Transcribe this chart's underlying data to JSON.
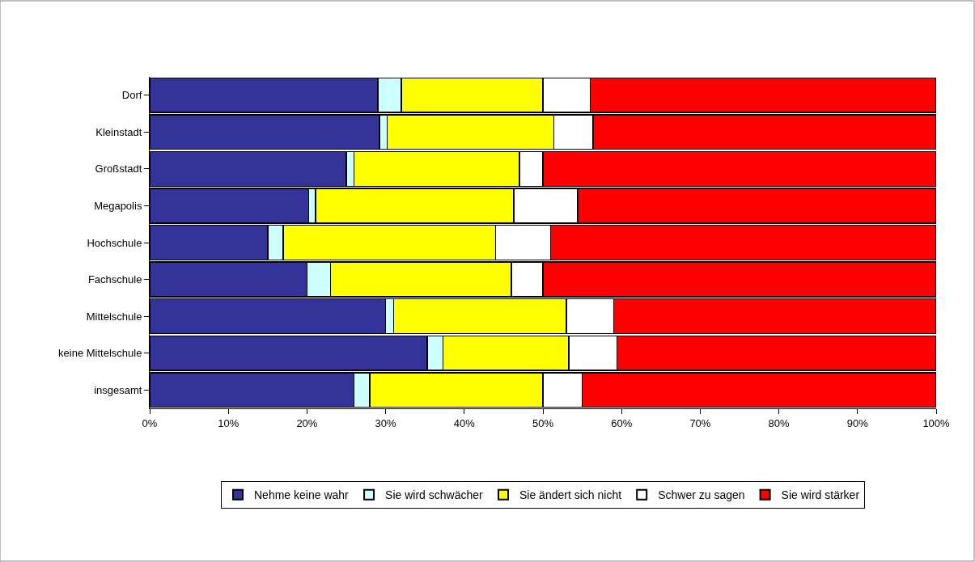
{
  "chart_data": {
    "type": "bar",
    "orientation": "horizontal",
    "stacked": true,
    "categories": [
      "Dorf",
      "Kleinstadt",
      "Großstadt",
      "Megapolis",
      "Hochschule",
      "Fachschule",
      "Mittelschule",
      "keine Mittelschule",
      "insgesamt"
    ],
    "series": [
      {
        "name": "Nehme keine wahr",
        "color": "#333399",
        "values": [
          29,
          29.2,
          25,
          20.2,
          15,
          20,
          30,
          35.3,
          26
        ]
      },
      {
        "name": "Sie wird schwächer",
        "color": "#ccffff",
        "values": [
          3,
          1,
          1,
          0.9,
          2,
          3,
          1,
          2,
          2
        ]
      },
      {
        "name": "Sie ändert sich nicht",
        "color": "#ffff00",
        "values": [
          18,
          21.2,
          21,
          25.2,
          27,
          23,
          22,
          16,
          22
        ]
      },
      {
        "name": "Schwer zu sagen",
        "color": "#ffffff",
        "values": [
          6,
          5,
          3,
          8.1,
          7,
          4,
          6,
          6.1,
          5
        ]
      },
      {
        "name": "Sie wird stärker",
        "color": "#ff0000",
        "values": [
          44,
          43.6,
          50,
          45.6,
          49,
          50,
          41,
          40.6,
          45
        ]
      }
    ],
    "xlim": [
      0,
      100
    ],
    "xticks": [
      {
        "value": 0,
        "label": "0%"
      },
      {
        "value": 10,
        "label": "10%"
      },
      {
        "value": 20,
        "label": "20%"
      },
      {
        "value": 30,
        "label": "30%"
      },
      {
        "value": 40,
        "label": "40%"
      },
      {
        "value": 50,
        "label": "50%"
      },
      {
        "value": 60,
        "label": "60%"
      },
      {
        "value": 70,
        "label": "70%"
      },
      {
        "value": 80,
        "label": "80%"
      },
      {
        "value": 90,
        "label": "90%"
      },
      {
        "value": 100,
        "label": "100%"
      }
    ],
    "legend": "bottom"
  }
}
